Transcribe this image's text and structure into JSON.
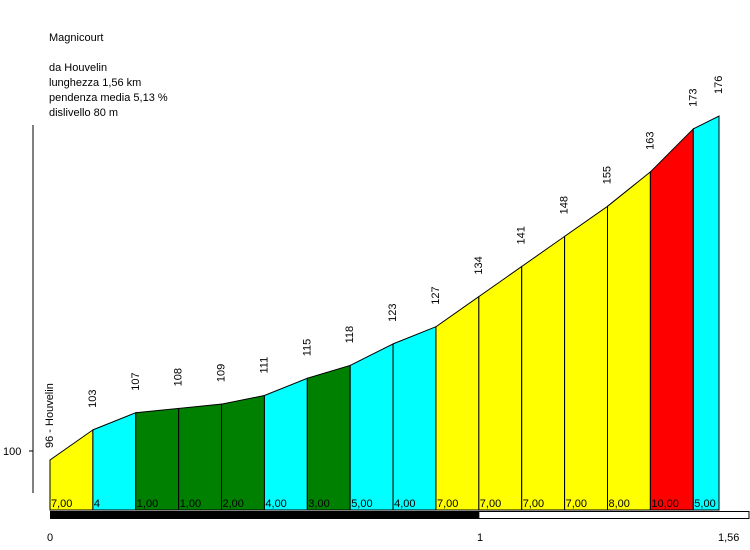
{
  "title": "Magnicourt",
  "route": {
    "start": "da Houvelin",
    "length": "lunghezza 1,56 km",
    "avg_gradient": "pendenza media 5,13 %",
    "elevation_gain": "dislivello 80 m"
  },
  "chart_data": {
    "type": "area",
    "title": "Magnicourt",
    "xlabel": "",
    "ylabel": "",
    "x_ticks": [
      "0",
      "1",
      "1,56"
    ],
    "y_ticks": [
      "100"
    ],
    "xlim": [
      0,
      1.56
    ],
    "start_label": "96 - Houvelin",
    "distance_km": [
      0,
      0.1,
      0.2,
      0.3,
      0.4,
      0.5,
      0.6,
      0.7,
      0.8,
      0.9,
      1.0,
      1.1,
      1.2,
      1.3,
      1.4,
      1.5,
      1.56
    ],
    "altitude_m": [
      96,
      103,
      107,
      108,
      109,
      111,
      115,
      118,
      123,
      127,
      134,
      141,
      148,
      155,
      163,
      173,
      176
    ],
    "altitude_labels": [
      "103",
      "107",
      "108",
      "109",
      "111",
      "115",
      "118",
      "123",
      "127",
      "134",
      "141",
      "148",
      "155",
      "163",
      "173",
      "176"
    ],
    "gradients": [
      "7,00",
      "4",
      "1,00",
      "1,00",
      "2,00",
      "4,00",
      "3,00",
      "5,00",
      "4,00",
      "7,00",
      "7,00",
      "7,00",
      "7,00",
      "8,00",
      "10,00",
      "5,00"
    ],
    "segment_colors": [
      "#ffff00",
      "#00ffff",
      "#008000",
      "#008000",
      "#008000",
      "#00ffff",
      "#008000",
      "#00ffff",
      "#00ffff",
      "#ffff00",
      "#ffff00",
      "#ffff00",
      "#ffff00",
      "#ffff00",
      "#ff0000",
      "#00ffff"
    ]
  }
}
